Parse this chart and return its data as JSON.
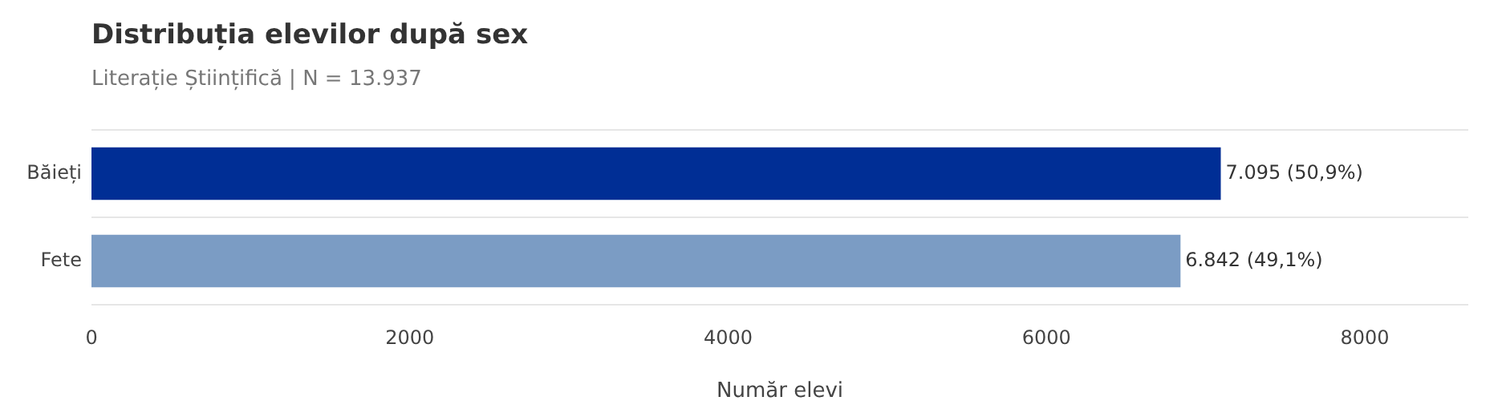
{
  "chart_data": {
    "type": "bar",
    "orientation": "horizontal",
    "title": "Distribuția elevilor după sex",
    "subtitle": "Literație Științifică | N = 13.937",
    "xlabel": "Număr elevi",
    "categories": [
      "Băieți",
      "Fete"
    ],
    "values": [
      7095,
      6842
    ],
    "colors": [
      "#002e95",
      "#7b9cc4"
    ],
    "value_labels": [
      "7.095 (50,9%)",
      "6.842 (49,1%)"
    ],
    "xlim": [
      0,
      8650
    ],
    "xticks": [
      0,
      2000,
      4000,
      6000,
      8000
    ],
    "grid": "y",
    "legend": false
  }
}
